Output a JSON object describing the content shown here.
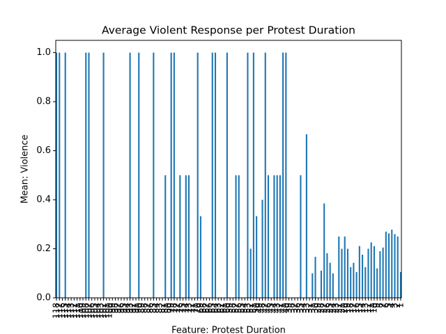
{
  "chart_data": {
    "type": "bar",
    "title": "Average Violent Response per Protest Duration",
    "x_label": "Feature: Protest Duration",
    "y_label": "Mean: Violence",
    "color": "#1f77b4",
    "categories": [
      "118",
      "117",
      "116",
      "115",
      "114",
      "113",
      "112",
      "111",
      "110",
      "109",
      "108",
      "107",
      "106",
      "105",
      "104",
      "103",
      "102",
      "101",
      "100",
      "99",
      "98",
      "97",
      "96",
      "95",
      "94",
      "93",
      "92",
      "91",
      "90",
      "89",
      "88",
      "87",
      "86",
      "85",
      "84",
      "83",
      "82",
      "81",
      "80",
      "79",
      "78",
      "77",
      "76",
      "75",
      "74",
      "73",
      "72",
      "71",
      "70",
      "69",
      "68",
      "67",
      "66",
      "65",
      "64",
      "63",
      "62",
      "61",
      "60",
      "59",
      "58",
      "57",
      "56",
      "55",
      "54",
      "53",
      "52",
      "51",
      "50",
      "49",
      "48",
      "47",
      "46",
      "45",
      "44",
      "43",
      "42",
      "41",
      "40",
      "39",
      "38",
      "37",
      "36",
      "35",
      "34",
      "33",
      "32",
      "31",
      "30",
      "29",
      "28",
      "27",
      "26",
      "25",
      "24",
      "23",
      "22",
      "21",
      "20",
      "19",
      "18",
      "17",
      "16",
      "15",
      "14",
      "13",
      "12",
      "11",
      "10",
      "9",
      "8",
      "7",
      "6",
      "5",
      "4",
      "3",
      "2",
      "1"
    ],
    "values": [
      1,
      1,
      0,
      1,
      0,
      0,
      0,
      0,
      0,
      0,
      1,
      1,
      0,
      0,
      0,
      0,
      1,
      0,
      0,
      0,
      0,
      0,
      0,
      0,
      0,
      1,
      0,
      0,
      1,
      0,
      0,
      0,
      0,
      1,
      0,
      0,
      0,
      0.5,
      0,
      1,
      1,
      0,
      0.5,
      0,
      0.5,
      0.5,
      0,
      0,
      1,
      0.333,
      0,
      0,
      0,
      1,
      1,
      0,
      0,
      0,
      1,
      0,
      0,
      0.5,
      0.5,
      0,
      0,
      1,
      0.2,
      1,
      0.333,
      0,
      0.4,
      1,
      0.5,
      0,
      0.5,
      0.5,
      0.5,
      1,
      1,
      0,
      0,
      0,
      0,
      0.5,
      0,
      0.667,
      0,
      0.1,
      0.167,
      0,
      0.111,
      0.385,
      0.182,
      0.143,
      0.1,
      0,
      0.25,
      0.2,
      0.25,
      0.2,
      0.125,
      0.143,
      0.105,
      0.211,
      0.176,
      0.125,
      0.2,
      0.226,
      0.211,
      0.12,
      0.19,
      0.205,
      0.27,
      0.263,
      0.278,
      0.26,
      0.25,
      0.105
    ],
    "ylim": [
      0,
      1.05
    ],
    "yticks": [
      {
        "value": 0,
        "label": "0.0"
      },
      {
        "value": 0.2,
        "label": "0.2"
      },
      {
        "value": 0.4,
        "label": "0.4"
      },
      {
        "value": 0.6,
        "label": "0.6"
      },
      {
        "value": 0.8,
        "label": "0.8"
      },
      {
        "value": 1,
        "label": "1.0"
      }
    ],
    "grid": false
  }
}
